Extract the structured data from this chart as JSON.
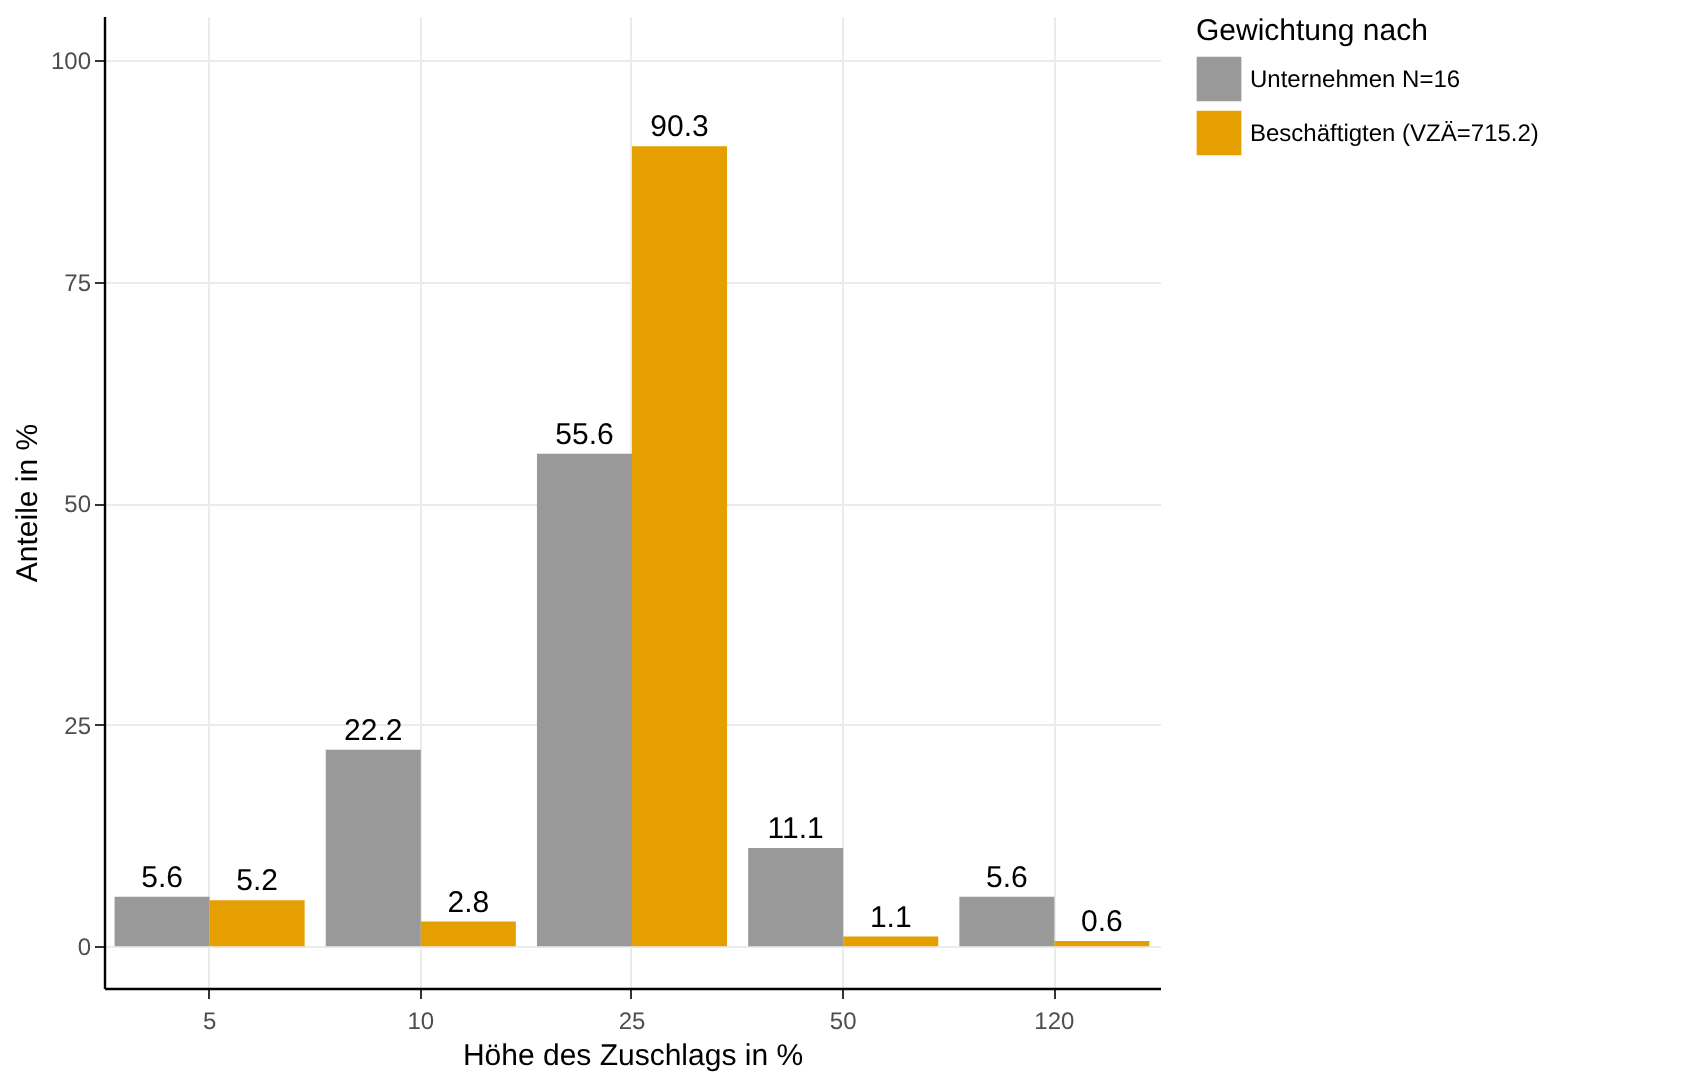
{
  "chart_data": {
    "type": "bar",
    "xlabel": "Höhe des Zuschlags in %",
    "ylabel": "Anteile in %",
    "legend_title": "Gewichtung nach",
    "categories": [
      "5",
      "10",
      "25",
      "50",
      "120"
    ],
    "series": [
      {
        "name": "Unternehmen N=16",
        "color": "#999999",
        "values": [
          5.6,
          22.2,
          55.6,
          11.1,
          5.6
        ]
      },
      {
        "name": "Beschäftigten (VZÄ=715.2)",
        "color": "#e69f00",
        "values": [
          5.2,
          2.8,
          90.3,
          1.1,
          0.6
        ]
      }
    ],
    "ylim": [
      -4.7,
      105
    ],
    "yticks": [
      0,
      25,
      50,
      75,
      100
    ],
    "grid": true,
    "legend": "right",
    "data_labels": true
  }
}
